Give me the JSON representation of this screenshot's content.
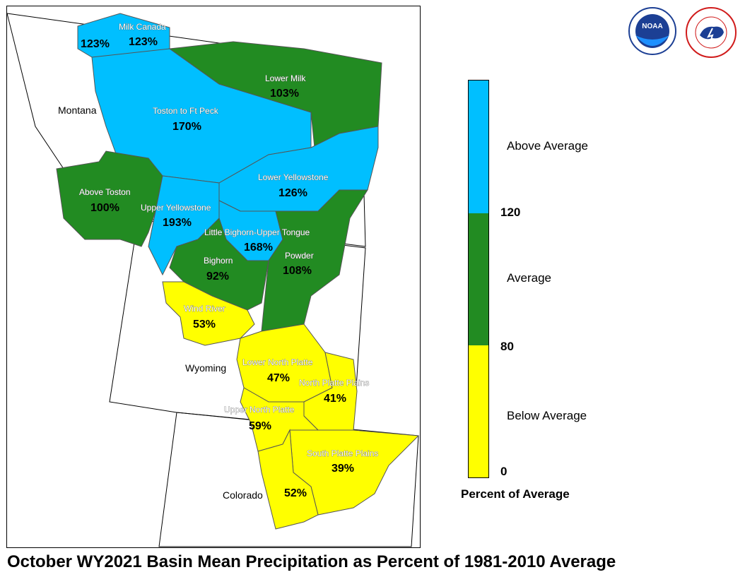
{
  "title": "October WY2021 Basin Mean Precipitation as Percent of 1981-2010 Average",
  "colors": {
    "above": "#00bfff",
    "average": "#228b22",
    "below": "#ffff00",
    "border": "#555555"
  },
  "legend": {
    "title": "Percent of Average",
    "categories": [
      {
        "label": "Above Average",
        "color": "#00bfff"
      },
      {
        "label": "Average",
        "color": "#228b22"
      },
      {
        "label": "Below Average",
        "color": "#ffff00"
      }
    ],
    "ticks": [
      "120",
      "80",
      "0"
    ]
  },
  "states": [
    "Montana",
    "Wyoming",
    "Colorado"
  ],
  "basins": [
    {
      "name": "Milk Canada",
      "pct": "123%",
      "extra_pct": "123%",
      "category": "above"
    },
    {
      "name": "Lower Milk",
      "pct": "103%",
      "category": "average"
    },
    {
      "name": "Toston to Ft Peck",
      "pct": "170%",
      "category": "above"
    },
    {
      "name": "Above Toston",
      "pct": "100%",
      "category": "average"
    },
    {
      "name": "Lower Yellowstone",
      "pct": "126%",
      "category": "above"
    },
    {
      "name": "Upper Yellowstone",
      "pct": "193%",
      "category": "above"
    },
    {
      "name": "Little Bighorn-Upper Tongue",
      "pct": "168%",
      "category": "above"
    },
    {
      "name": "Bighorn",
      "pct": "92%",
      "category": "average"
    },
    {
      "name": "Powder",
      "pct": "108%",
      "category": "average"
    },
    {
      "name": "Wind River",
      "pct": "53%",
      "category": "below"
    },
    {
      "name": "Lower North Platte",
      "pct": "47%",
      "category": "below"
    },
    {
      "name": "North Platte Plains",
      "pct": "41%",
      "category": "below"
    },
    {
      "name": "Upper North Platte",
      "pct": "59%",
      "category": "below"
    },
    {
      "name": "South Platte Plains",
      "pct": "39%",
      "category": "below"
    },
    {
      "name": "",
      "pct": "52%",
      "category": "below"
    }
  ],
  "logos": {
    "noaa": {
      "text": "NOAA"
    },
    "nws": {
      "text": ""
    }
  }
}
